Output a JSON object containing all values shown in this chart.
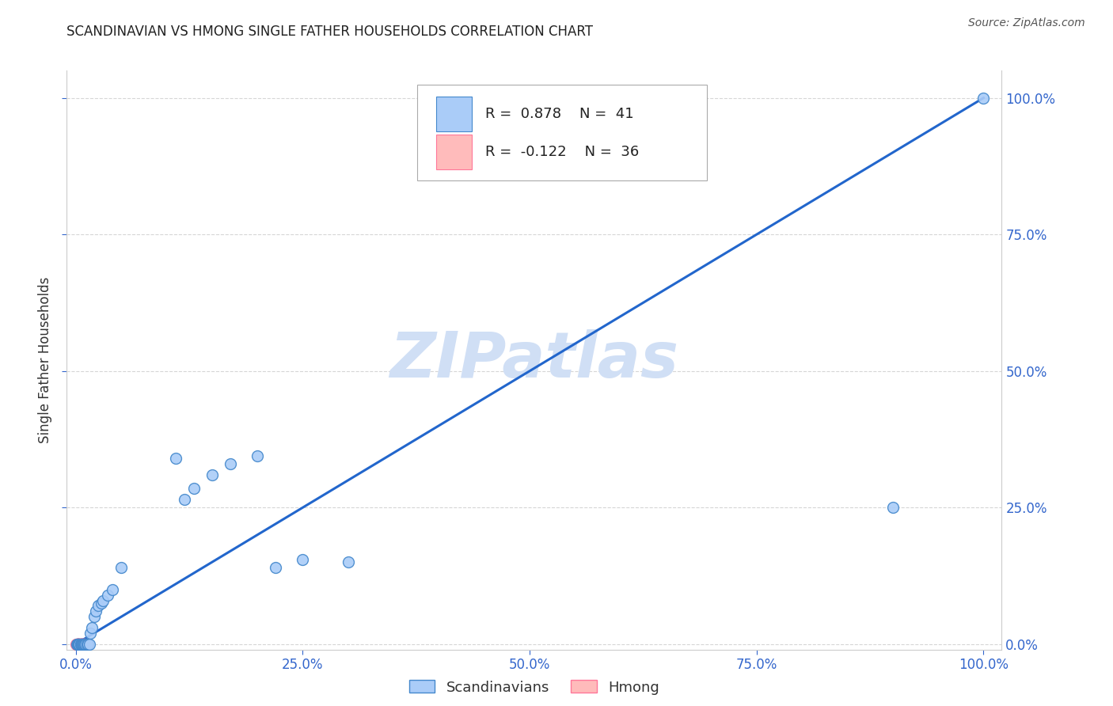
{
  "title": "SCANDINAVIAN VS HMONG SINGLE FATHER HOUSEHOLDS CORRELATION CHART",
  "source": "Source: ZipAtlas.com",
  "ylabel": "Single Father Households",
  "legend_scandinavian_label": "Scandinavians",
  "legend_hmong_label": "Hmong",
  "R_scandinavian": "0.878",
  "N_scandinavian": "41",
  "R_hmong": "-0.122",
  "N_hmong": "36",
  "scandinavian_color": "#aaccf8",
  "scandinavian_edge_color": "#4488cc",
  "hmong_color": "#ffbbbb",
  "hmong_edge_color": "#ff7799",
  "trendline_color": "#2266cc",
  "watermark_color": "#d0dff5",
  "background_color": "#ffffff",
  "grid_color": "#cccccc",
  "title_color": "#222222",
  "axis_tick_color": "#3366cc",
  "legend_text_color": "#222222",
  "source_color": "#555555",
  "scand_x": [
    0.001,
    0.002,
    0.002,
    0.003,
    0.003,
    0.004,
    0.004,
    0.005,
    0.005,
    0.006,
    0.006,
    0.007,
    0.008,
    0.008,
    0.009,
    0.01,
    0.011,
    0.012,
    0.013,
    0.015,
    0.016,
    0.018,
    0.02,
    0.022,
    0.025,
    0.028,
    0.03,
    0.035,
    0.04,
    0.05,
    0.11,
    0.12,
    0.13,
    0.15,
    0.17,
    0.2,
    0.22,
    0.25,
    0.3,
    0.9,
    1.0
  ],
  "scand_y": [
    0.0,
    0.0,
    0.0,
    0.0,
    0.0,
    0.0,
    0.0,
    0.0,
    0.0,
    0.0,
    0.0,
    0.0,
    0.0,
    0.0,
    0.0,
    0.0,
    0.0,
    0.0,
    0.0,
    0.0,
    0.02,
    0.03,
    0.05,
    0.06,
    0.07,
    0.075,
    0.08,
    0.09,
    0.1,
    0.14,
    0.34,
    0.265,
    0.285,
    0.31,
    0.33,
    0.345,
    0.14,
    0.155,
    0.15,
    0.25,
    1.0
  ],
  "hmong_x": [
    0.0,
    0.001,
    0.001,
    0.001,
    0.002,
    0.002,
    0.002,
    0.002,
    0.003,
    0.003,
    0.003,
    0.003,
    0.003,
    0.004,
    0.004,
    0.004,
    0.004,
    0.005,
    0.005,
    0.005,
    0.005,
    0.005,
    0.006,
    0.006,
    0.006,
    0.006,
    0.007,
    0.007,
    0.007,
    0.008,
    0.008,
    0.008,
    0.009,
    0.009,
    0.01,
    0.01
  ],
  "hmong_y": [
    0.0,
    0.0,
    0.0,
    0.0,
    0.0,
    0.0,
    0.0,
    0.0,
    0.0,
    0.0,
    0.0,
    0.0,
    0.0,
    0.0,
    0.0,
    0.0,
    0.0,
    0.0,
    0.0,
    0.0,
    0.0,
    0.0,
    0.0,
    0.0,
    0.0,
    0.0,
    0.0,
    0.0,
    0.0,
    0.0,
    0.0,
    0.0,
    0.0,
    0.0,
    0.0,
    0.0
  ],
  "trendline_x": [
    0.0,
    1.0
  ],
  "trendline_y": [
    0.0,
    1.0
  ],
  "xlim": [
    -0.01,
    1.02
  ],
  "ylim": [
    -0.01,
    1.05
  ],
  "xticks": [
    0.0,
    0.25,
    0.5,
    0.75,
    1.0
  ],
  "yticks": [
    0.0,
    0.25,
    0.5,
    0.75,
    1.0
  ]
}
